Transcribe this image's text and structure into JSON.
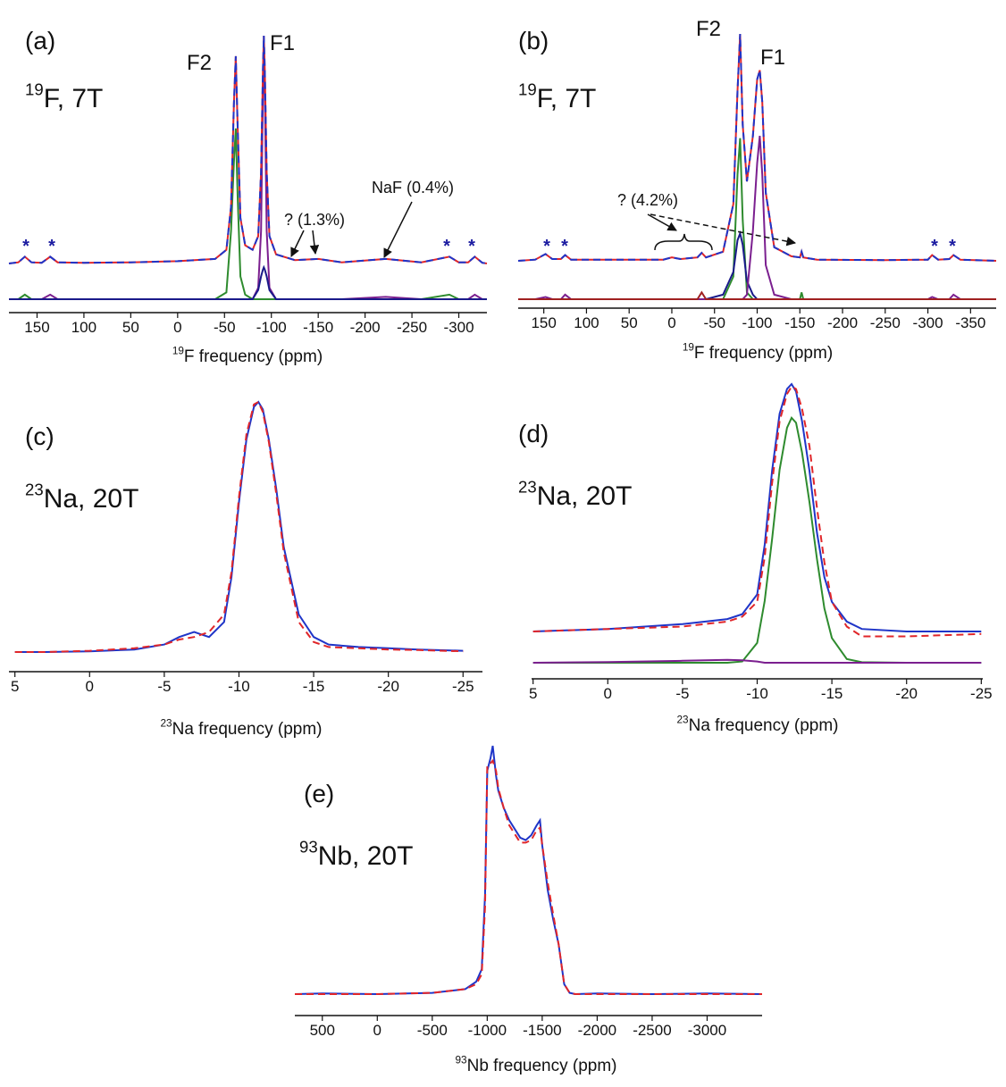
{
  "chart_data": [
    {
      "type": "line",
      "panel": "(a)",
      "nucleus_sup": "19",
      "nucleus": "F, 7T",
      "xlabel_sup": "19",
      "xlabel": "F frequency (ppm)",
      "xlim": [
        180,
        -330
      ],
      "xticks": [
        150,
        100,
        50,
        0,
        -50,
        -100,
        -150,
        -200,
        -250,
        -300
      ],
      "annotations": [
        "F2",
        "F1",
        "? (1.3%)",
        "NaF (0.4%)",
        "*",
        "*",
        "*",
        "*"
      ],
      "x": [
        180,
        170,
        163,
        156,
        145,
        136,
        128,
        100,
        50,
        0,
        -40,
        -52,
        -57,
        -60,
        -62,
        -64,
        -67,
        -72,
        -80,
        -86,
        -89,
        -91,
        -92,
        -93,
        -95,
        -98,
        -105,
        -125,
        -150,
        -175,
        -222,
        -260,
        -290,
        -300,
        -310,
        -317,
        -325,
        -330
      ],
      "series": [
        {
          "color": "#e0262a",
          "dashed": false,
          "values": [
            0,
            0.5,
            3,
            0.5,
            0.3,
            3,
            0.5,
            0.3,
            0.5,
            1,
            2,
            6,
            25,
            70,
            91,
            60,
            20,
            8,
            6,
            12,
            40,
            85,
            100,
            85,
            40,
            12,
            4,
            1.5,
            2,
            0.5,
            2,
            0.5,
            3,
            0.5,
            0.5,
            3,
            0.3,
            0
          ]
        },
        {
          "color": "#1f35c8",
          "dashed": true,
          "values": [
            0,
            0.5,
            3,
            0.5,
            0.3,
            3,
            0.5,
            0.3,
            0.5,
            1,
            2,
            6,
            25,
            70,
            91,
            60,
            20,
            8,
            6,
            12,
            40,
            85,
            100,
            85,
            40,
            12,
            4,
            1.5,
            2,
            0.5,
            2,
            0.5,
            3,
            0.5,
            0.5,
            3,
            0.3,
            0
          ]
        }
      ],
      "components": [
        {
          "color": "#2e8b2e",
          "values": [
            0,
            0,
            2,
            0,
            0,
            0,
            0,
            0,
            0,
            0,
            0,
            3,
            30,
            60,
            75,
            45,
            10,
            2,
            0,
            0,
            0,
            0,
            0,
            0,
            0,
            0,
            0,
            0,
            0,
            0,
            0,
            0,
            2,
            0,
            0,
            0,
            0,
            0
          ]
        },
        {
          "color": "#7b1f8f",
          "values": [
            0,
            0,
            0,
            0,
            0,
            2,
            0,
            0,
            0,
            0,
            0,
            0,
            0,
            0,
            0,
            0,
            0,
            0,
            0,
            5,
            30,
            90,
            110,
            90,
            30,
            5,
            0,
            0,
            0,
            0,
            1,
            0,
            0,
            0,
            0,
            2,
            0,
            0
          ]
        },
        {
          "color": "#1a1a8a",
          "values": [
            0,
            0,
            0,
            0,
            0,
            0,
            0,
            0,
            0,
            0,
            0,
            0,
            0,
            0,
            0,
            0,
            0,
            0,
            0,
            4,
            10,
            13,
            14,
            13,
            10,
            4,
            0,
            0,
            0,
            0,
            0,
            0,
            0,
            0,
            0,
            0,
            0,
            0
          ]
        }
      ]
    },
    {
      "type": "line",
      "panel": "(b)",
      "nucleus_sup": "19",
      "nucleus": "F, 7T",
      "xlabel_sup": "19",
      "xlabel": "F frequency (ppm)",
      "xlim": [
        180,
        -380
      ],
      "xticks": [
        150,
        100,
        50,
        0,
        -50,
        -100,
        -150,
        -200,
        -250,
        -300,
        -350
      ],
      "annotations": [
        "F2",
        "F1",
        "? (4.2%)",
        "*",
        "*",
        "*",
        "*"
      ],
      "x": [
        180,
        160,
        148,
        140,
        130,
        125,
        118,
        100,
        50,
        10,
        0,
        -10,
        -30,
        -35,
        -40,
        -60,
        -72,
        -77,
        -80,
        -83,
        -88,
        -95,
        -100,
        -103,
        -106,
        -110,
        -120,
        -140,
        -150,
        -152,
        -154,
        -170,
        -250,
        -300,
        -305,
        -312,
        -325,
        -330,
        -338,
        -380
      ],
      "series": [
        {
          "color": "#e0262a",
          "dashed": false,
          "values": [
            0,
            0.5,
            3,
            0.8,
            0.8,
            2.5,
            0.5,
            0.5,
            0.5,
            0.5,
            1.5,
            0.8,
            1.5,
            3.5,
            1.5,
            4,
            25,
            75,
            100,
            60,
            35,
            55,
            80,
            84,
            70,
            30,
            6,
            2,
            1.5,
            4,
            1.5,
            0.5,
            0.3,
            0.5,
            2.5,
            0.5,
            0.8,
            2.5,
            0.5,
            0
          ]
        },
        {
          "color": "#1f35c8",
          "dashed": true,
          "values": [
            0,
            0.5,
            3,
            0.8,
            0.8,
            2.5,
            0.5,
            0.5,
            0.5,
            0.5,
            1.5,
            0.8,
            1.5,
            3.5,
            1.5,
            4,
            25,
            75,
            100,
            60,
            35,
            55,
            80,
            84,
            70,
            30,
            6,
            2,
            1.5,
            4,
            1.5,
            0.5,
            0.3,
            0.5,
            2.5,
            0.5,
            0.8,
            2.5,
            0.5,
            0
          ]
        }
      ],
      "components": [
        {
          "color": "#2e8b2e",
          "values": [
            0,
            0,
            0,
            0,
            0,
            0,
            0,
            0,
            0,
            0,
            0,
            0,
            0,
            0,
            0,
            0,
            10,
            55,
            71,
            35,
            3,
            0,
            0,
            0,
            0,
            0,
            0,
            0,
            0,
            3,
            0,
            0,
            0,
            0,
            0,
            0,
            0,
            0,
            0,
            0
          ]
        },
        {
          "color": "#1a1a8a",
          "values": [
            0,
            0,
            0,
            0,
            0,
            0,
            0,
            0,
            0,
            0,
            0,
            0,
            0,
            0,
            0,
            2,
            12,
            26,
            29,
            24,
            8,
            2,
            0,
            0,
            0,
            0,
            0,
            0,
            0,
            0,
            0,
            0,
            0,
            0,
            0,
            0,
            0,
            0,
            0,
            0
          ]
        },
        {
          "color": "#7b1f8f",
          "values": [
            0,
            0,
            1,
            0,
            0,
            2,
            0,
            0,
            0,
            0,
            0,
            0,
            0,
            0,
            0,
            0,
            0,
            0,
            0,
            0,
            2,
            30,
            60,
            72,
            55,
            15,
            2,
            0,
            0,
            0,
            0,
            0,
            0,
            0,
            1,
            0,
            0,
            2,
            0,
            0
          ]
        },
        {
          "color": "#a02020",
          "values": [
            0,
            0,
            0,
            0,
            0,
            0,
            0,
            0,
            0,
            0,
            0,
            0,
            0,
            3,
            0,
            0,
            0,
            0,
            0,
            0,
            0,
            0,
            0,
            0,
            0,
            0,
            0,
            0,
            0,
            0,
            0,
            0,
            0,
            0,
            0,
            0,
            0,
            0,
            0,
            0
          ]
        }
      ]
    },
    {
      "type": "line",
      "panel": "(c)",
      "nucleus_sup": "23",
      "nucleus": "Na, 20T",
      "xlabel_sup": "23",
      "xlabel": "Na frequency (ppm)",
      "xlim": [
        5.4,
        -26.3
      ],
      "xticks": [
        5,
        0,
        -5,
        -10,
        -15,
        -20,
        -25
      ],
      "x": [
        5,
        3,
        0,
        -3,
        -5,
        -6,
        -7,
        -7.5,
        -8,
        -9,
        -9.5,
        -10,
        -10.5,
        -11,
        -11.3,
        -11.6,
        -12,
        -12.5,
        -13,
        -14,
        -15,
        -16,
        -18,
        -20,
        -22,
        -25
      ],
      "series": [
        {
          "color": "#1f35c8",
          "dashed": false,
          "values": [
            0,
            0,
            0.3,
            1,
            3,
            6,
            8,
            7,
            6,
            12,
            30,
            60,
            85,
            98,
            100,
            97,
            85,
            65,
            42,
            15,
            6,
            3,
            2,
            1.5,
            1,
            0.5
          ]
        },
        {
          "color": "#e0262a",
          "dashed": true,
          "values": [
            0,
            0,
            0.5,
            1.5,
            3,
            5,
            6,
            7,
            8,
            15,
            32,
            62,
            87,
            99,
            100,
            96,
            84,
            63,
            40,
            12,
            4,
            2,
            1.5,
            1,
            0.8,
            0.3
          ]
        }
      ]
    },
    {
      "type": "line",
      "panel": "(d)",
      "nucleus_sup": "23",
      "nucleus": "Na, 20T",
      "xlabel_sup": "23",
      "xlabel": "Na frequency (ppm)",
      "xlim": [
        5.1,
        -25.1
      ],
      "xticks": [
        5,
        0,
        -5,
        -10,
        -15,
        -20,
        -25
      ],
      "x": [
        5,
        0,
        -5,
        -8,
        -9,
        -10,
        -10.5,
        -11,
        -11.5,
        -12,
        -12.3,
        -12.6,
        -13,
        -13.5,
        -14,
        -14.5,
        -15,
        -16,
        -17,
        -20,
        -25
      ],
      "series": [
        {
          "color": "#1f35c8",
          "dashed": false,
          "values": [
            0,
            1,
            3,
            5,
            7,
            15,
            35,
            65,
            88,
            98,
            100,
            97,
            85,
            65,
            40,
            22,
            12,
            4,
            1,
            0,
            0
          ]
        },
        {
          "color": "#e0262a",
          "dashed": true,
          "values": [
            0,
            1,
            2,
            4,
            6,
            12,
            30,
            60,
            85,
            96,
            99,
            98,
            90,
            75,
            50,
            28,
            12,
            2,
            -2,
            -2,
            -1
          ]
        }
      ],
      "components": [
        {
          "color": "#2e8b2e",
          "values": [
            0,
            0,
            0,
            0,
            0.5,
            8,
            25,
            50,
            78,
            95,
            99,
            97,
            85,
            65,
            42,
            22,
            10,
            1.5,
            0.2,
            0,
            0
          ]
        },
        {
          "color": "#7b1f8f",
          "values": [
            0,
            0.3,
            0.8,
            1.2,
            1,
            0.5,
            0,
            0,
            0,
            0,
            0,
            0,
            0,
            0,
            0,
            0,
            0,
            0,
            0,
            0,
            0
          ]
        }
      ]
    },
    {
      "type": "line",
      "panel": "(e)",
      "nucleus_sup": "93",
      "nucleus": "Nb, 20T",
      "xlabel_sup": "93",
      "xlabel": "Nb frequency (ppm)",
      "xlim": [
        750,
        -3500
      ],
      "xticks": [
        500,
        0,
        -500,
        -1000,
        -1500,
        -2000,
        -2500,
        -3000
      ],
      "x": [
        750,
        500,
        0,
        -500,
        -800,
        -900,
        -950,
        -980,
        -1000,
        -1030,
        -1050,
        -1080,
        -1100,
        -1150,
        -1200,
        -1300,
        -1350,
        -1400,
        -1450,
        -1480,
        -1500,
        -1550,
        -1600,
        -1650,
        -1700,
        -1750,
        -1800,
        -2000,
        -2500,
        -3000,
        -3500
      ],
      "series": [
        {
          "color": "#1f35c8",
          "dashed": false,
          "values": [
            0,
            0.3,
            0,
            0.5,
            2,
            5,
            10,
            40,
            90,
            95,
            100,
            88,
            82,
            75,
            70,
            63,
            62,
            64,
            68,
            70,
            60,
            42,
            30,
            20,
            4,
            0.5,
            0,
            0.3,
            0,
            0.3,
            0
          ]
        },
        {
          "color": "#e0262a",
          "dashed": true,
          "values": [
            0,
            0,
            0,
            0.5,
            2,
            4,
            8,
            35,
            92,
            93,
            94,
            90,
            83,
            75,
            68,
            61,
            61,
            62,
            66,
            67,
            60,
            45,
            32,
            20,
            4,
            0.5,
            0,
            0,
            0,
            0,
            0
          ]
        }
      ]
    }
  ]
}
